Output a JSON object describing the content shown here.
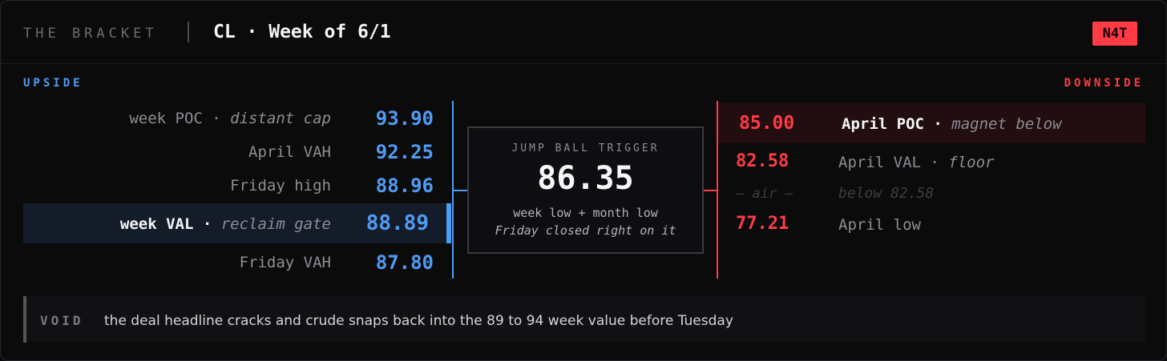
{
  "header": {
    "brand": "THE BRACKET",
    "title": "CL · Week of 6/1",
    "badge": "N4T"
  },
  "upside": {
    "label": "UPSIDE",
    "rows": [
      {
        "name": "week POC",
        "sep": " · ",
        "desc": "distant cap",
        "value": "93.90"
      },
      {
        "name": "April VAH",
        "sep": "",
        "desc": "",
        "value": "92.25"
      },
      {
        "name": "Friday high",
        "sep": "",
        "desc": "",
        "value": "88.96"
      },
      {
        "name": "week VAL",
        "sep": " · ",
        "desc": "reclaim gate",
        "value": "88.89"
      },
      {
        "name": "Friday VAH",
        "sep": "",
        "desc": "",
        "value": "87.80"
      }
    ]
  },
  "trigger": {
    "label": "JUMP BALL TRIGGER",
    "value": "86.35",
    "line1": "week low + month low",
    "line2": "Friday closed right on it"
  },
  "downside": {
    "label": "DOWNSIDE",
    "rows": [
      {
        "value": "85.00",
        "name": "April POC",
        "sep": " · ",
        "desc": "magnet below"
      },
      {
        "value": "82.58",
        "name": "April VAL",
        "sep": " · ",
        "desc": "floor"
      },
      {
        "value": "— air —",
        "name": "below 82.58",
        "sep": "",
        "desc": ""
      },
      {
        "value": "77.21",
        "name": "April low",
        "sep": "",
        "desc": ""
      }
    ]
  },
  "void": {
    "tag": "VOID",
    "text": "the deal headline cracks and crude snaps back into the 89 to 94 week value before Tuesday"
  },
  "colors": {
    "upside_accent": "#4f9cf5",
    "downside_accent": "#ff3b45",
    "background": "#0b0b0c"
  }
}
